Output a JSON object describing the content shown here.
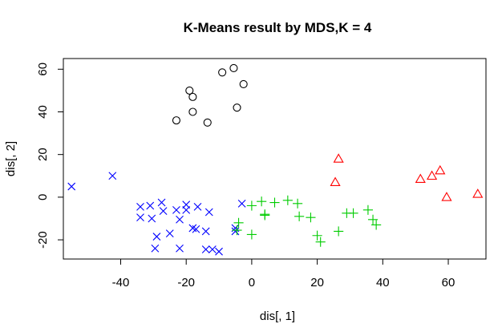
{
  "chart_data": {
    "type": "scatter",
    "title": "K-Means result by MDS,K = 4",
    "xlabel": "dis[, 1]",
    "ylabel": "dis[, 2]",
    "xlim": [
      -57.5,
      71.5
    ],
    "ylim": [
      -29,
      65
    ],
    "x_ticks": [
      -40,
      -20,
      0,
      20,
      40,
      60
    ],
    "x_tick_labels": [
      "-40",
      "-20",
      "0",
      "20",
      "40",
      "60"
    ],
    "y_ticks": [
      -20,
      0,
      20,
      40,
      60
    ],
    "y_tick_labels": [
      "-20",
      "0",
      "20",
      "40",
      "60"
    ],
    "grid": false,
    "series": [
      {
        "marker": "circle",
        "color": "#000000",
        "points": [
          [
            -5.5,
            60.5
          ],
          [
            -9,
            58.5
          ],
          [
            -2.5,
            53
          ],
          [
            -19,
            50
          ],
          [
            -18,
            47
          ],
          [
            -4.5,
            42
          ],
          [
            -18,
            40
          ],
          [
            -23,
            36
          ],
          [
            -13.5,
            35
          ]
        ]
      },
      {
        "marker": "x",
        "color": "#0000ff",
        "points": [
          [
            -55,
            5
          ],
          [
            -42.5,
            10
          ],
          [
            -34,
            -4.5
          ],
          [
            -31,
            -4
          ],
          [
            -27.5,
            -2.5
          ],
          [
            -20,
            -3.5
          ],
          [
            -16.5,
            -4.5
          ],
          [
            -3,
            -3
          ],
          [
            -34,
            -9.5
          ],
          [
            -30.5,
            -10
          ],
          [
            -27,
            -6.5
          ],
          [
            -23,
            -6
          ],
          [
            -20,
            -6
          ],
          [
            -13,
            -7
          ],
          [
            -22,
            -10.5
          ],
          [
            -18,
            -14.5
          ],
          [
            -17,
            -15
          ],
          [
            -14,
            -16
          ],
          [
            -25,
            -17
          ],
          [
            -5,
            -14.5
          ],
          [
            -5,
            -16
          ],
          [
            -29,
            -18.5
          ],
          [
            -29.5,
            -24
          ],
          [
            -22,
            -24
          ],
          [
            -14,
            -24.5
          ],
          [
            -12,
            -24.5
          ],
          [
            -10,
            -25.5
          ]
        ]
      },
      {
        "marker": "plus",
        "color": "#00cc00",
        "points": [
          [
            -4,
            -12
          ],
          [
            0,
            -4
          ],
          [
            3,
            -2
          ],
          [
            7,
            -2.5
          ],
          [
            11,
            -1.5
          ],
          [
            14,
            -3
          ],
          [
            4,
            -8
          ],
          [
            4,
            -8.5
          ],
          [
            14.5,
            -9
          ],
          [
            18,
            -9.5
          ],
          [
            29,
            -7.5
          ],
          [
            31,
            -7.5
          ],
          [
            35.5,
            -6
          ],
          [
            37,
            -10.5
          ],
          [
            38,
            -13
          ],
          [
            26.5,
            -16
          ],
          [
            20,
            -18
          ],
          [
            21,
            -21
          ],
          [
            0,
            -17.5
          ],
          [
            -4.5,
            -15.5
          ]
        ]
      },
      {
        "marker": "triangle",
        "color": "#ff0000",
        "points": [
          [
            26.5,
            18
          ],
          [
            25.5,
            7
          ],
          [
            51.5,
            8.5
          ],
          [
            55,
            10
          ],
          [
            57.5,
            12.5
          ],
          [
            59.5,
            0
          ],
          [
            69,
            1.5
          ]
        ]
      }
    ]
  }
}
